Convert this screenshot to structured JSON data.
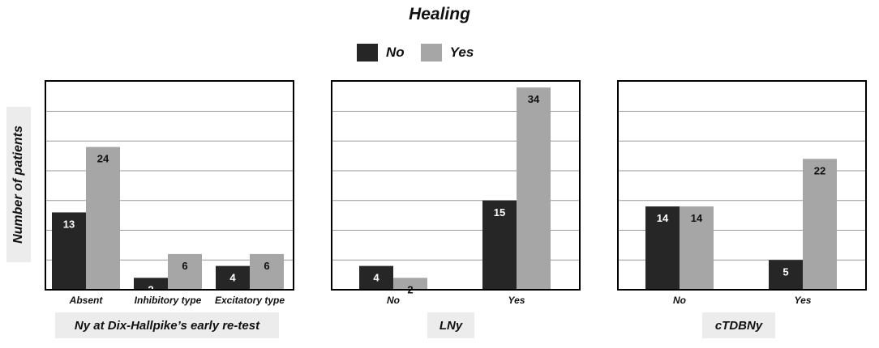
{
  "title": "Healing",
  "ylabel": "Number of patients",
  "colors": {
    "no": "#262626",
    "yes": "#a6a6a6",
    "grid": "#999999"
  },
  "legend": [
    {
      "label": "No",
      "color": "#262626"
    },
    {
      "label": "Yes",
      "color": "#a6a6a6"
    }
  ],
  "chart_data": [
    {
      "type": "bar",
      "xlabel": "Ny at Dix-Hallpike’s early re-test",
      "categories": [
        "Absent",
        "Inhibitory type",
        "Excitatory type"
      ],
      "series": [
        {
          "name": "No",
          "values": [
            13,
            2,
            4
          ]
        },
        {
          "name": "Yes",
          "values": [
            24,
            6,
            6
          ]
        }
      ],
      "ylim": [
        0,
        35
      ],
      "grid": true
    },
    {
      "type": "bar",
      "xlabel": "LNy",
      "categories": [
        "No",
        "Yes"
      ],
      "series": [
        {
          "name": "No",
          "values": [
            4,
            15
          ]
        },
        {
          "name": "Yes",
          "values": [
            2,
            34
          ]
        }
      ],
      "ylim": [
        0,
        35
      ],
      "grid": true
    },
    {
      "type": "bar",
      "xlabel": "cTDBNy",
      "categories": [
        "No",
        "Yes"
      ],
      "series": [
        {
          "name": "No",
          "values": [
            14,
            5
          ]
        },
        {
          "name": "Yes",
          "values": [
            14,
            22
          ]
        }
      ],
      "ylim": [
        0,
        35
      ],
      "grid": true
    }
  ]
}
